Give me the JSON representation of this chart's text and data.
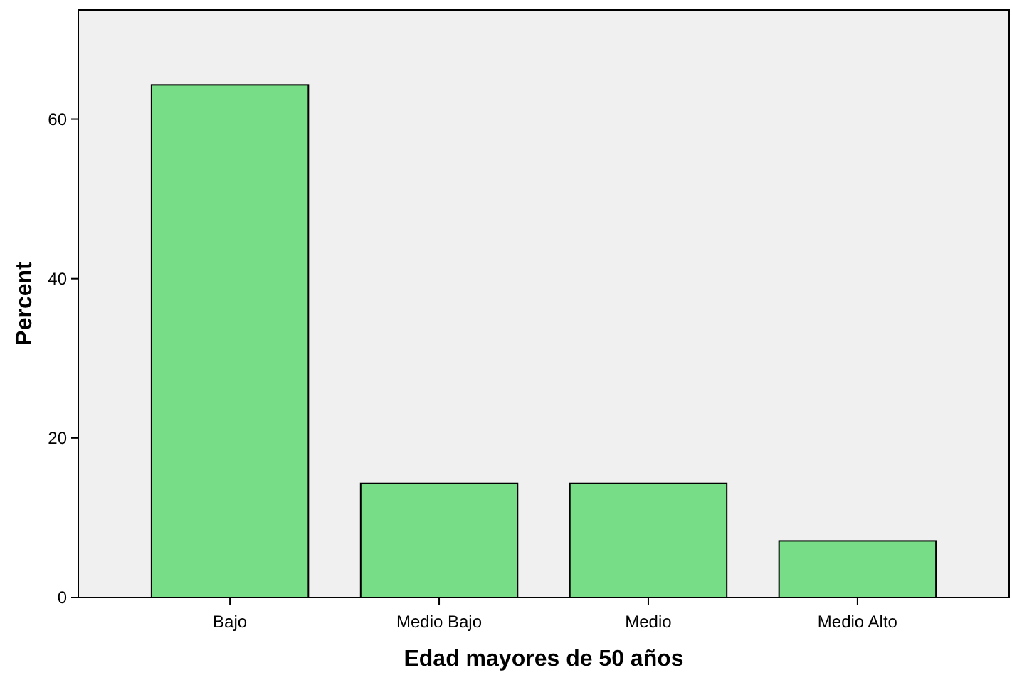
{
  "chart_data": {
    "type": "bar",
    "xlabel": "Edad mayores de 50 años",
    "ylabel": "Percent",
    "categories": [
      "Bajo",
      "Medio Bajo",
      "Medio",
      "Medio Alto"
    ],
    "values": [
      64.3,
      14.3,
      14.3,
      7.1
    ],
    "color": "#77de87",
    "ylim": [
      0,
      73.7
    ],
    "yticks": [
      0,
      20,
      40,
      60
    ],
    "grid": false
  }
}
